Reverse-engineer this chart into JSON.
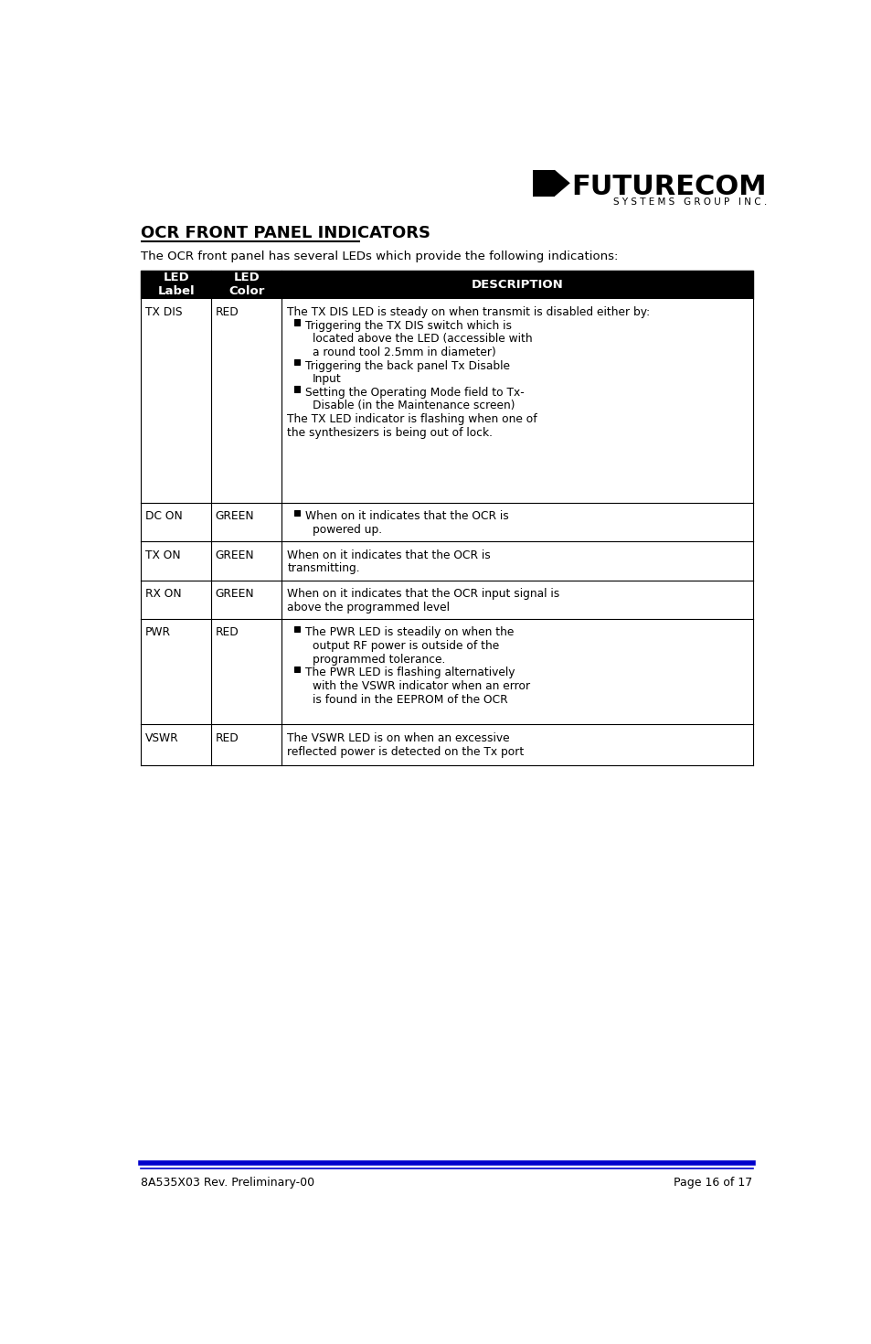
{
  "page_width": 9.54,
  "page_height": 14.7,
  "dpi": 100,
  "bg_color": "#ffffff",
  "header_logo_text": "FUTURECOM",
  "header_logo_sub": "S Y S T E M S   G R O U P   I N C .",
  "title": "OCR FRONT PANEL INDICATORS",
  "subtitle": "The OCR front panel has several LEDs which provide the following indications:",
  "footer_left": "8A535X03 Rev. Preliminary-00",
  "footer_right": "Page 16 of 17",
  "footer_line_color": "#0000cc",
  "table_header_bg": "#000000",
  "table_header_fg": "#ffffff",
  "table_border_color": "#000000",
  "col1_label": "LED\nLabel",
  "col2_label": "LED\nColor",
  "col3_label": "DESCRIPTION",
  "rows": [
    {
      "label": "TX DIS",
      "color": "RED",
      "description": "The TX DIS LED is steady on when transmit is disabled either by:\n•  Triggering the TX DIS switch which is\n       located above the LED (accessible with\n       a round tool 2.5mm in diameter)\n•  Triggering the back panel Tx Disable\n       Input\n•  Setting the Operating Mode field to Tx-\n       Disable (in the Maintenance screen)\nThe TX LED indicator is flashing when one of\nthe synthesizers is being out of lock.",
      "has_bullets": true,
      "bullet_style": "square"
    },
    {
      "label": "DC ON",
      "color": "GREEN",
      "description": "•  When on it indicates that the OCR is\n       powered up.",
      "has_bullets": true,
      "bullet_style": "square"
    },
    {
      "label": "TX ON",
      "color": "GREEN",
      "description": "When on it indicates that the OCR is\ntransmitting.",
      "has_bullets": false
    },
    {
      "label": "RX ON",
      "color": "GREEN",
      "description": "When on it indicates that the OCR input signal is\nabove the programmed level",
      "has_bullets": false
    },
    {
      "label": "PWR",
      "color": "RED",
      "description": "•  The PWR LED is steadily on when the\n       output RF power is outside of the\n       programmed tolerance.\n•  The PWR LED is flashing alternatively\n       with the VSWR indicator when an error\n       is found in the EEPROM of the OCR",
      "has_bullets": true,
      "bullet_style": "square"
    },
    {
      "label": "VSWR",
      "color": "RED",
      "description": "The VSWR LED is on when an excessive\nreflected power is detected on the Tx port",
      "has_bullets": false
    }
  ]
}
